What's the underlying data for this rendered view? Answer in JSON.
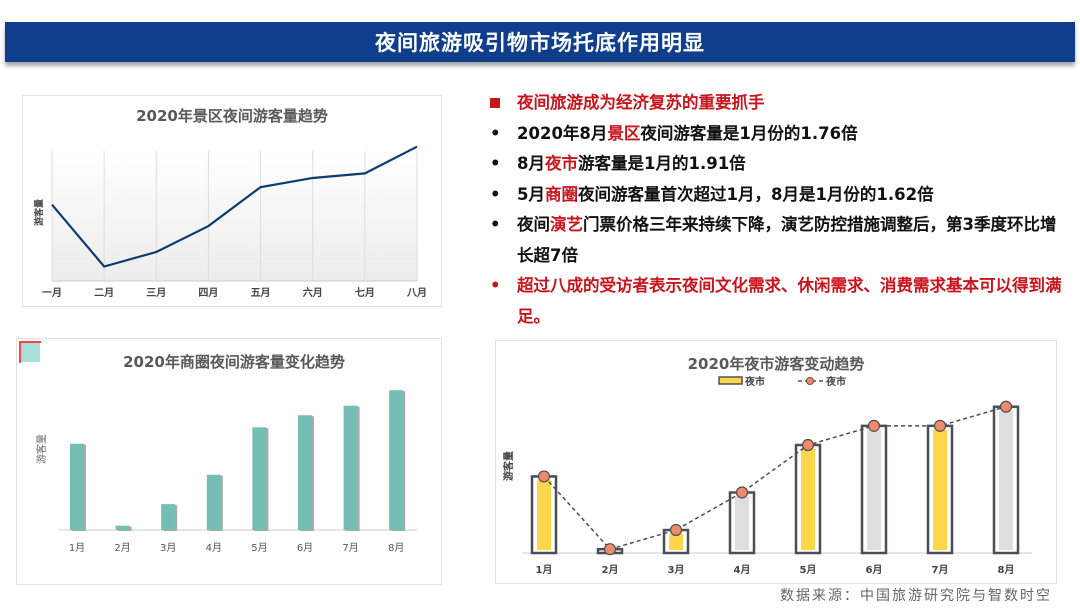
{
  "header": {
    "title": "夜间旅游吸引物市场托底作用明显"
  },
  "bullets": {
    "heading": "夜间旅游成为经济复苏的重要抓手",
    "items": [
      {
        "pre": "2020年8月",
        "hl": "景区",
        "post": "夜间游客量是1月份的1.76倍"
      },
      {
        "pre": "8月",
        "hl": "夜市",
        "post": "游客量是1月的1.91倍"
      },
      {
        "pre": "5月",
        "hl": "商圈",
        "post": "夜间游客量首次超过1月，8月是1月份的1.62倍"
      },
      {
        "pre": "夜间",
        "hl": "演艺",
        "post": "门票价格三年来持续下降，演艺防控措施调整后，第3季度环比增长超7倍"
      }
    ],
    "last": "超过八成的受访者表示夜间文化需求、休闲需求、消费需求基本可以得到满足。",
    "bullet_char": "•"
  },
  "source": "数据来源：中国旅游研究院与智数时空",
  "colors": {
    "header": "#0f3e8c",
    "highlight": "#c8141c",
    "line": "#0d3c6e",
    "teal": "#76bdb4",
    "yellow": "#ffd54a",
    "gray_bar": "#dedede",
    "dot": "#f08a6a"
  },
  "chart_data": [
    {
      "type": "line",
      "title": "2020年景区夜间游客量趋势",
      "ylabel": "游客量",
      "categories": [
        "一月",
        "二月",
        "三月",
        "四月",
        "五月",
        "六月",
        "七月",
        "八月"
      ],
      "values": [
        1.0,
        0.19,
        0.38,
        0.72,
        1.23,
        1.35,
        1.41,
        1.76
      ],
      "ylim": [
        0,
        1.9
      ],
      "grid": "vertical"
    },
    {
      "type": "bar",
      "title": "2020年商圈夜间游客量变化趋势",
      "ylabel": "游客量",
      "categories": [
        "1月",
        "2月",
        "3月",
        "4月",
        "5月",
        "6月",
        "7月",
        "8月"
      ],
      "values": [
        1.0,
        0.05,
        0.3,
        0.64,
        1.19,
        1.33,
        1.44,
        1.62
      ],
      "ylim": [
        0,
        1.75
      ]
    },
    {
      "type": "bar+line",
      "title": "2020年夜市游客变动趋势",
      "ylabel": "游客量",
      "legend": [
        {
          "label": "夜市",
          "kind": "bar"
        },
        {
          "label": "夜市",
          "kind": "dashed-line"
        }
      ],
      "legend_position": "top",
      "categories": [
        "1月",
        "2月",
        "3月",
        "4月",
        "5月",
        "6月",
        "7月",
        "8月"
      ],
      "values": [
        1.0,
        0.05,
        0.3,
        0.79,
        1.41,
        1.66,
        1.66,
        1.91
      ],
      "ylim": [
        0,
        2.05
      ]
    }
  ]
}
